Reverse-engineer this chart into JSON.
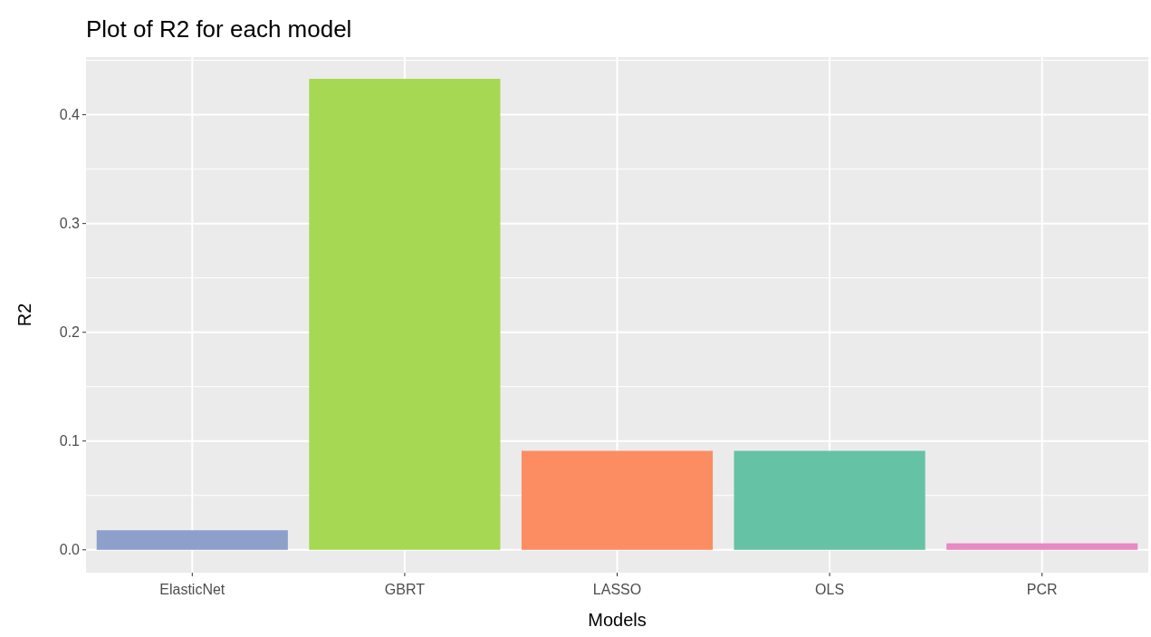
{
  "chart_data": {
    "type": "bar",
    "title": "Plot of R2 for each model",
    "xlabel": "Models",
    "ylabel": "R2",
    "categories": [
      "ElasticNet",
      "GBRT",
      "LASSO",
      "OLS",
      "PCR"
    ],
    "values": [
      0.018,
      0.433,
      0.091,
      0.091,
      0.006
    ],
    "colors": [
      "#8da0cb",
      "#a6d854",
      "#fc8d62",
      "#66c2a5",
      "#e78ac3"
    ],
    "ylim": [
      -0.021,
      0.453
    ],
    "yticks": [
      {
        "value": 0,
        "label": "0.0"
      },
      0.1,
      0.2,
      0.3,
      0.4
    ],
    "grid": true
  }
}
